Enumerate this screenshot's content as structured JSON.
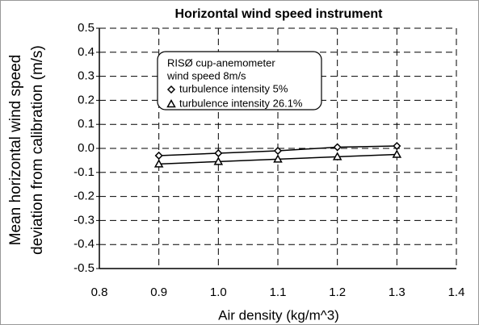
{
  "chart_data": {
    "type": "line",
    "title": "Horizontal wind speed instrument",
    "xlabel": "Air density (kg/m^3)",
    "ylabel": [
      "Mean horizontal wind speed",
      "deviation from calibration (m/s)"
    ],
    "annotation": [
      "RISØ cup-anemometer",
      "wind speed 8m/s"
    ],
    "x": [
      0.9,
      1.0,
      1.1,
      1.2,
      1.3
    ],
    "series": [
      {
        "name": "turbulence intensity 5%",
        "color": "#000000",
        "marker": "diamond",
        "values": [
          -0.03,
          -0.02,
          -0.01,
          0.005,
          0.01
        ]
      },
      {
        "name": "turbulence intensity 26.1%",
        "color": "#000000",
        "marker": "triangle",
        "values": [
          -0.065,
          -0.055,
          -0.045,
          -0.035,
          -0.025
        ]
      }
    ],
    "xlim": [
      0.8,
      1.4
    ],
    "xticks": [
      0.8,
      0.9,
      {
        "value": 1.0,
        "label": "1.0"
      },
      1.1,
      1.2,
      1.3,
      1.4
    ],
    "ylim": [
      -0.5,
      0.5
    ],
    "yticks": [
      0.5,
      0.4,
      0.3,
      0.2,
      0.1,
      {
        "value": 0,
        "label": "0.0"
      },
      -0.1,
      -0.2,
      -0.3,
      -0.4,
      -0.5
    ],
    "grid": true
  }
}
